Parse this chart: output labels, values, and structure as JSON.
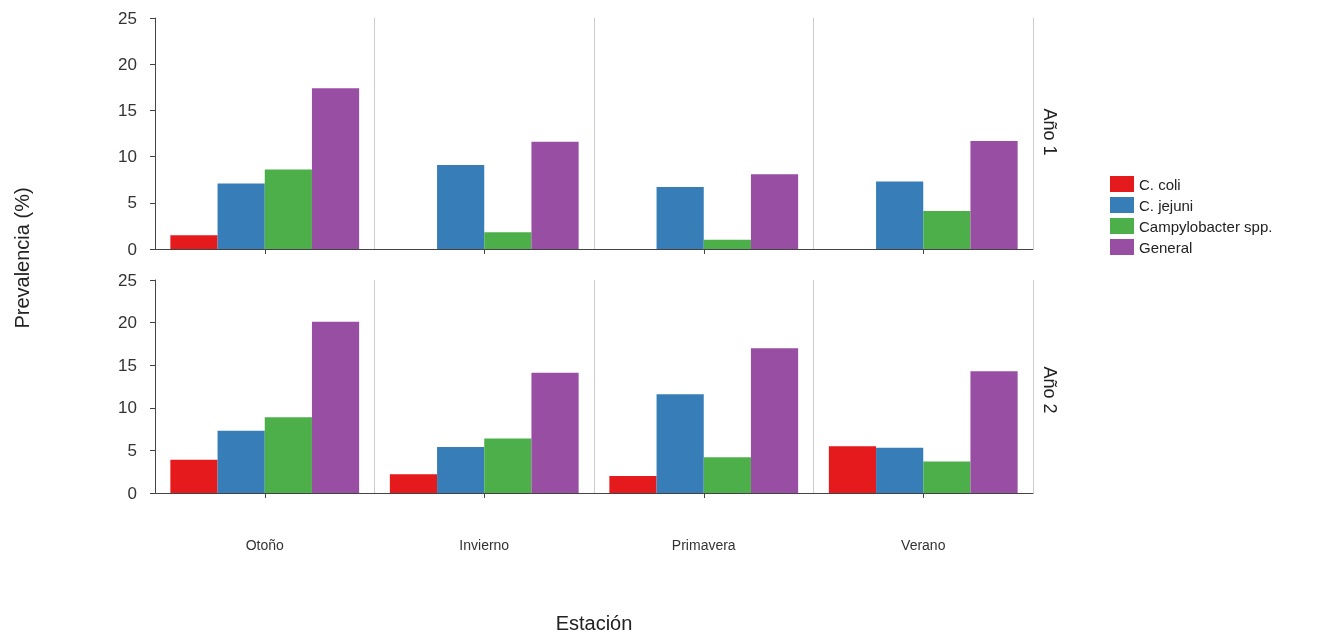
{
  "chart_data": [
    {
      "type": "bar",
      "title": "Año 1",
      "ylabel": "Prevalencia (%)",
      "series": [
        {
          "name": "C. coli",
          "color": "#e41a1c",
          "values": [
            1.5,
            0,
            0,
            0
          ]
        },
        {
          "name": "C. jejuni",
          "color": "#377eb8",
          "values": [
            7.1,
            9.1,
            6.7,
            7.3
          ]
        },
        {
          "name": "Campylobacter spp.",
          "color": "#4daf4a",
          "values": [
            8.6,
            1.8,
            1.0,
            4.1
          ]
        },
        {
          "name": "General",
          "color": "#984ea3",
          "values": [
            17.4,
            11.6,
            8.1,
            11.7
          ]
        }
      ],
      "ylim": [
        0,
        25
      ],
      "yticks": [
        0,
        5,
        10,
        15,
        20,
        25
      ],
      "grid": "x",
      "legend": "right",
      "tick_labels": "y"
    },
    {
      "type": "bar",
      "title": "Año 2",
      "xlabel": "Estación",
      "categories": [
        "Otoño",
        "Invierno",
        "Primavera",
        "Verano"
      ],
      "series": [
        {
          "color": "#e41a1c",
          "values": [
            3.9,
            2.2,
            2.0,
            5.5
          ]
        },
        {
          "color": "#377eb8",
          "values": [
            7.3,
            5.4,
            11.6,
            5.3
          ]
        },
        {
          "color": "#4daf4a",
          "values": [
            8.9,
            6.4,
            4.2,
            3.7
          ]
        },
        {
          "color": "#984ea3",
          "values": [
            20.1,
            14.1,
            17.0,
            14.3
          ]
        }
      ],
      "ylim": [
        0,
        25
      ],
      "yticks": [
        0,
        5,
        10,
        15,
        20,
        25
      ],
      "grid": "x"
    }
  ]
}
